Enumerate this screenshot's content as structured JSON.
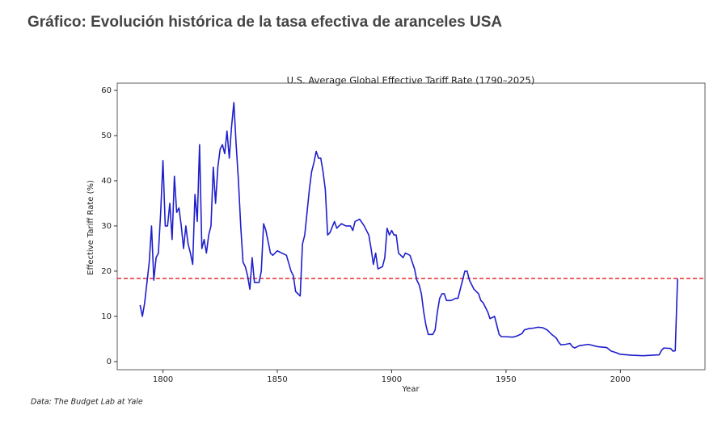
{
  "header": {
    "title": "Gráfico: Evolución histórica de la tasa efectiva de aranceles USA"
  },
  "chart_data": {
    "type": "line",
    "title": "U.S. Average Global Effective Tariff Rate (1790–2025)",
    "x_label": "Year",
    "y_label": "Effective Tariff Rate (%)",
    "source": "Data: The Budget Lab at Yale",
    "x": [
      1790,
      1791,
      1792,
      1794,
      1795,
      1796,
      1797,
      1798,
      1799,
      1800,
      1801,
      1802,
      1803,
      1804,
      1805,
      1806,
      1807,
      1808,
      1809,
      1810,
      1811,
      1812,
      1813,
      1814,
      1815,
      1816,
      1817,
      1818,
      1819,
      1820,
      1821,
      1822,
      1823,
      1824,
      1825,
      1826,
      1827,
      1828,
      1829,
      1830,
      1831,
      1832,
      1833,
      1834,
      1835,
      1836,
      1837,
      1838,
      1839,
      1840,
      1842,
      1843,
      1844,
      1845,
      1847,
      1848,
      1850,
      1852,
      1854,
      1856,
      1857,
      1858,
      1860,
      1861,
      1862,
      1863,
      1864,
      1865,
      1866,
      1867,
      1868,
      1869,
      1870,
      1871,
      1872,
      1873,
      1875,
      1876,
      1878,
      1880,
      1882,
      1883,
      1884,
      1886,
      1888,
      1890,
      1891,
      1892,
      1893,
      1894,
      1896,
      1897,
      1898,
      1899,
      1900,
      1901,
      1902,
      1903,
      1905,
      1906,
      1908,
      1910,
      1911,
      1912,
      1913,
      1914,
      1915,
      1916,
      1918,
      1919,
      1920,
      1921,
      1922,
      1923,
      1924,
      1926,
      1928,
      1929,
      1930,
      1931,
      1932,
      1933,
      1934,
      1936,
      1938,
      1939,
      1940,
      1942,
      1943,
      1945,
      1946,
      1947,
      1948,
      1950,
      1953,
      1955,
      1957,
      1958,
      1960,
      1962,
      1964,
      1966,
      1968,
      1970,
      1972,
      1973,
      1974,
      1976,
      1978,
      1979,
      1980,
      1982,
      1986,
      1990,
      1994,
      1996,
      1998,
      2000,
      2005,
      2010,
      2017,
      2018,
      2019,
      2022,
      2023,
      2024,
      2025
    ],
    "values": [
      12.5,
      10,
      13,
      22,
      30,
      18,
      23,
      24,
      33,
      44.5,
      30,
      30,
      35,
      27,
      41,
      33,
      34,
      30,
      25,
      30,
      26,
      24,
      21.5,
      37,
      31,
      48,
      25,
      27,
      24,
      28,
      30,
      43,
      35,
      43,
      47,
      48,
      46,
      51,
      45,
      52,
      57.3,
      48,
      40,
      30,
      22,
      21,
      19,
      16,
      23,
      17.5,
      17.5,
      20,
      30.5,
      29,
      24,
      23.5,
      24.5,
      24,
      23.5,
      20,
      19,
      15.5,
      14.5,
      26,
      28,
      33,
      38,
      42,
      44,
      46.5,
      45,
      45,
      42,
      38,
      28,
      28.5,
      31,
      29.5,
      30.5,
      30,
      30,
      29,
      31,
      31.5,
      30,
      28,
      25,
      21.5,
      24,
      20.5,
      21,
      23,
      29.5,
      28,
      29,
      28,
      28,
      24,
      23,
      24,
      23.5,
      20.5,
      18,
      17,
      15,
      11,
      8,
      6,
      6,
      7,
      11,
      14,
      15,
      15,
      13.5,
      13.5,
      14,
      14,
      16,
      18,
      20,
      20,
      18,
      16,
      15,
      13.5,
      13,
      11,
      9.5,
      10,
      8,
      6,
      5.5,
      5.5,
      5.4,
      5.7,
      6.2,
      7,
      7.3,
      7.4,
      7.6,
      7.5,
      7,
      6,
      5.2,
      4.3,
      3.7,
      3.8,
      4,
      3.3,
      3,
      3.5,
      3.8,
      3.3,
      3.1,
      2.3,
      2,
      1.6,
      1.4,
      1.3,
      1.5,
      2.5,
      3,
      2.9,
      2.3,
      2.4,
      18.3
    ],
    "color": "#1f1fcc",
    "reference_line": {
      "value": 18.4,
      "color": "#e41a1c"
    },
    "xlim": [
      1780,
      2037
    ],
    "xticks": [
      1800,
      1850,
      1900,
      1950,
      2000
    ],
    "ylim": [
      -1.8,
      61.6
    ],
    "yticks": [
      0,
      10,
      20,
      30,
      40,
      50,
      60
    ],
    "grid": false
  }
}
